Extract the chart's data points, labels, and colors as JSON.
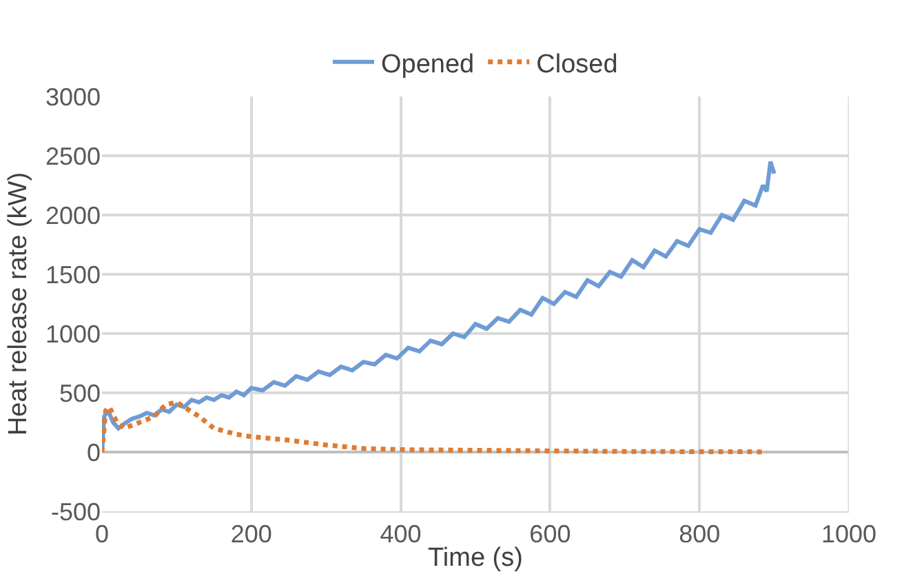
{
  "chart_data": {
    "type": "line",
    "xlabel": "Time (s)",
    "ylabel": "Heat release rate (kW)",
    "xlim": [
      0,
      1000
    ],
    "xticks": [
      0,
      200,
      400,
      600,
      800,
      1000
    ],
    "ylim": [
      -500,
      3000
    ],
    "yticks": [
      -500,
      0,
      500,
      1000,
      1500,
      2000,
      2500,
      3000
    ],
    "grid": true,
    "legend": "top",
    "marker": "none",
    "series": [
      {
        "name": "Opened",
        "color": "#6f9bd6",
        "line_style": "solid",
        "x": [
          0,
          3,
          8,
          15,
          22,
          30,
          40,
          50,
          60,
          70,
          80,
          90,
          100,
          110,
          120,
          130,
          140,
          150,
          160,
          170,
          180,
          190,
          200,
          215,
          230,
          245,
          260,
          275,
          290,
          305,
          320,
          335,
          350,
          365,
          380,
          395,
          410,
          425,
          440,
          455,
          470,
          485,
          500,
          515,
          530,
          545,
          560,
          575,
          590,
          605,
          620,
          635,
          650,
          665,
          680,
          695,
          710,
          725,
          740,
          755,
          770,
          785,
          800,
          815,
          830,
          845,
          860,
          875,
          885,
          890,
          895,
          900
        ],
        "values": [
          0,
          300,
          350,
          250,
          200,
          240,
          280,
          300,
          330,
          310,
          360,
          340,
          400,
          380,
          440,
          420,
          460,
          440,
          480,
          460,
          510,
          480,
          540,
          520,
          590,
          560,
          640,
          610,
          680,
          650,
          720,
          690,
          760,
          740,
          820,
          790,
          880,
          850,
          940,
          910,
          1000,
          970,
          1080,
          1040,
          1130,
          1100,
          1200,
          1160,
          1300,
          1250,
          1350,
          1310,
          1450,
          1400,
          1520,
          1480,
          1620,
          1560,
          1700,
          1650,
          1780,
          1740,
          1880,
          1850,
          2000,
          1960,
          2120,
          2080,
          2250,
          2200,
          2450,
          2350
        ]
      },
      {
        "name": "Closed",
        "color": "#e07b30",
        "line_style": "dotted",
        "x": [
          0,
          5,
          10,
          20,
          30,
          50,
          70,
          85,
          100,
          110,
          130,
          150,
          180,
          200,
          250,
          300,
          350,
          400,
          500,
          600,
          700,
          800,
          890
        ],
        "values": [
          0,
          350,
          380,
          250,
          200,
          250,
          300,
          400,
          420,
          380,
          300,
          200,
          150,
          130,
          100,
          60,
          30,
          20,
          15,
          10,
          5,
          3,
          2
        ]
      }
    ]
  }
}
